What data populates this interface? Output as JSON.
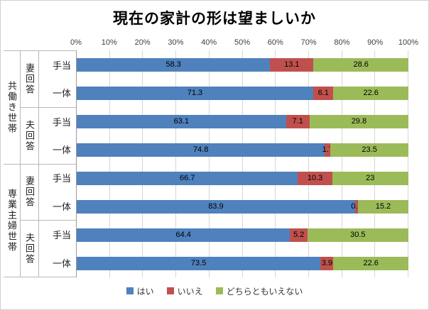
{
  "title": "現在の家計の形は望ましいか",
  "chart_data": {
    "type": "bar",
    "orientation": "horizontal",
    "stacked": true,
    "grid": true,
    "legend_position": "bottom",
    "axis_range": [
      0,
      100
    ],
    "axis_ticks": [
      "0%",
      "10%",
      "20%",
      "30%",
      "40%",
      "50%",
      "60%",
      "70%",
      "80%",
      "90%",
      "100%"
    ],
    "series": [
      {
        "name": "はい",
        "color": "#4F81BD"
      },
      {
        "name": "いいえ",
        "color": "#C0504D"
      },
      {
        "name": "どちらともいえない",
        "color": "#9BBB59"
      }
    ],
    "groups": [
      {
        "label": "共働き世帯",
        "subgroups": [
          {
            "label": "妻回答",
            "rows": [
              {
                "label": "手当",
                "values": [
                  "58.3",
                  "13.1",
                  "28.6"
                ]
              },
              {
                "label": "一体",
                "values": [
                  "71.3",
                  "6.1",
                  "22.6"
                ]
              }
            ]
          },
          {
            "label": "夫回答",
            "rows": [
              {
                "label": "手当",
                "values": [
                  "63.1",
                  "7.1",
                  "29.8"
                ]
              },
              {
                "label": "一体",
                "values": [
                  "74.8",
                  "1.7",
                  "23.5"
                ]
              }
            ]
          }
        ]
      },
      {
        "label": "専業主婦世帯",
        "subgroups": [
          {
            "label": "妻回答",
            "rows": [
              {
                "label": "手当",
                "values": [
                  "66.7",
                  "10.3",
                  "23"
                ]
              },
              {
                "label": "一体",
                "values": [
                  "83.9",
                  "0.9",
                  "15.2"
                ]
              }
            ]
          },
          {
            "label": "夫回答",
            "rows": [
              {
                "label": "手当",
                "values": [
                  "64.4",
                  "5.2",
                  "30.5"
                ]
              },
              {
                "label": "一体",
                "values": [
                  "73.5",
                  "3.9",
                  "22.6"
                ]
              }
            ]
          }
        ]
      }
    ]
  }
}
